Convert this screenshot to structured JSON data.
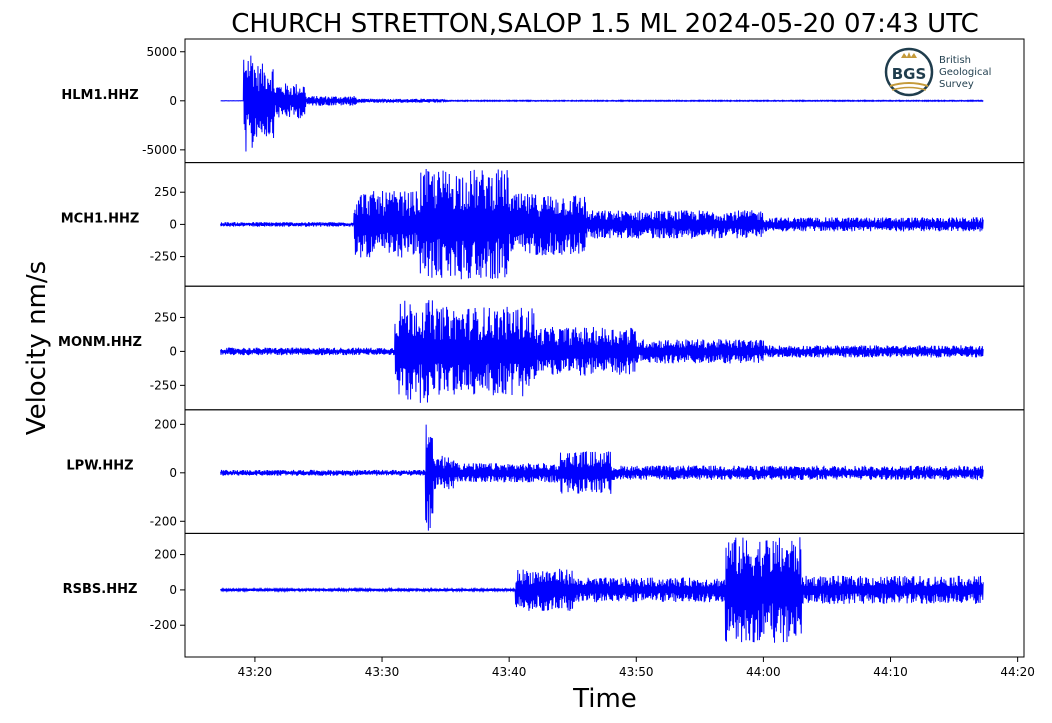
{
  "chart_data": {
    "type": "line",
    "title": "CHURCH STRETTON,SALOP 1.5 ML   2024-05-20 07:43 UTC",
    "xlabel": "Time",
    "ylabel": "Velocity nm/s",
    "x_range_seconds": [
      14.5,
      80.5
    ],
    "x_ticks": [
      {
        "label": "43:20",
        "sec": 20
      },
      {
        "label": "43:30",
        "sec": 30
      },
      {
        "label": "43:40",
        "sec": 40
      },
      {
        "label": "43:50",
        "sec": 50
      },
      {
        "label": "44:00",
        "sec": 60
      },
      {
        "label": "44:10",
        "sec": 70
      },
      {
        "label": "44:20",
        "sec": 80
      }
    ],
    "line_color": "#0000ff",
    "logo": {
      "initials": "BGS",
      "lines": [
        "British",
        "Geological",
        "Survey"
      ]
    },
    "series": [
      {
        "name": "HLM1.HHZ",
        "ylim": [
          -6300,
          6300
        ],
        "yticks": [
          {
            "v": 5000,
            "label": "5000"
          },
          {
            "v": 0,
            "label": "0"
          },
          {
            "v": -5000,
            "label": "-5000"
          }
        ],
        "t_start": 17.3,
        "t_end": 77.3,
        "segments": [
          {
            "t0": 17.3,
            "t1": 19.1,
            "amp": 15
          },
          {
            "t0": 19.1,
            "t1": 20.0,
            "amp": 5400
          },
          {
            "t0": 20.0,
            "t1": 21.5,
            "amp": 3800
          },
          {
            "t0": 21.5,
            "t1": 24.0,
            "amp": 1800
          },
          {
            "t0": 24.0,
            "t1": 28.0,
            "amp": 500
          },
          {
            "t0": 28.0,
            "t1": 35.0,
            "amp": 200
          },
          {
            "t0": 35.0,
            "t1": 77.3,
            "amp": 50
          }
        ]
      },
      {
        "name": "MCH1.HHZ",
        "ylim": [
          -480,
          480
        ],
        "yticks": [
          {
            "v": 250,
            "label": "250"
          },
          {
            "v": 0,
            "label": "0"
          },
          {
            "v": -250,
            "label": "-250"
          }
        ],
        "t_start": 17.3,
        "t_end": 77.3,
        "segments": [
          {
            "t0": 17.3,
            "t1": 27.8,
            "amp": 18
          },
          {
            "t0": 27.8,
            "t1": 33.0,
            "amp": 260
          },
          {
            "t0": 33.0,
            "t1": 40.0,
            "amp": 430
          },
          {
            "t0": 40.0,
            "t1": 46.0,
            "amp": 240
          },
          {
            "t0": 46.0,
            "t1": 60.0,
            "amp": 110
          },
          {
            "t0": 60.0,
            "t1": 77.3,
            "amp": 55
          }
        ]
      },
      {
        "name": "MONM.HHZ",
        "ylim": [
          -430,
          480
        ],
        "yticks": [
          {
            "v": 250,
            "label": "250"
          },
          {
            "v": 0,
            "label": "0"
          },
          {
            "v": -250,
            "label": "-250"
          }
        ],
        "t_start": 17.3,
        "t_end": 77.3,
        "segments": [
          {
            "t0": 17.3,
            "t1": 31.0,
            "amp": 28
          },
          {
            "t0": 31.0,
            "t1": 34.0,
            "amp": 380
          },
          {
            "t0": 34.0,
            "t1": 42.0,
            "amp": 330
          },
          {
            "t0": 42.0,
            "t1": 50.0,
            "amp": 180
          },
          {
            "t0": 50.0,
            "t1": 60.0,
            "amp": 90
          },
          {
            "t0": 60.0,
            "t1": 77.3,
            "amp": 45
          }
        ]
      },
      {
        "name": "LPW.HHZ",
        "ylim": [
          -250,
          260
        ],
        "yticks": [
          {
            "v": 200,
            "label": "200"
          },
          {
            "v": 0,
            "label": "0"
          },
          {
            "v": -200,
            "label": "-200"
          }
        ],
        "t_start": 17.3,
        "t_end": 77.3,
        "segments": [
          {
            "t0": 17.3,
            "t1": 33.4,
            "amp": 12
          },
          {
            "t0": 33.4,
            "t1": 34.0,
            "amp": 240
          },
          {
            "t0": 34.0,
            "t1": 36.0,
            "amp": 70
          },
          {
            "t0": 36.0,
            "t1": 44.0,
            "amp": 40
          },
          {
            "t0": 44.0,
            "t1": 48.0,
            "amp": 90
          },
          {
            "t0": 48.0,
            "t1": 77.3,
            "amp": 30
          }
        ]
      },
      {
        "name": "RSBS.HHZ",
        "ylim": [
          -380,
          320
        ],
        "yticks": [
          {
            "v": 200,
            "label": "200"
          },
          {
            "v": 0,
            "label": "0"
          },
          {
            "v": -200,
            "label": "-200"
          }
        ],
        "t_start": 17.3,
        "t_end": 77.3,
        "segments": [
          {
            "t0": 17.3,
            "t1": 40.5,
            "amp": 8
          },
          {
            "t0": 40.5,
            "t1": 45.0,
            "amp": 120
          },
          {
            "t0": 45.0,
            "t1": 57.0,
            "amp": 70
          },
          {
            "t0": 57.0,
            "t1": 63.0,
            "amp": 300
          },
          {
            "t0": 63.0,
            "t1": 77.3,
            "amp": 80
          }
        ]
      }
    ]
  }
}
